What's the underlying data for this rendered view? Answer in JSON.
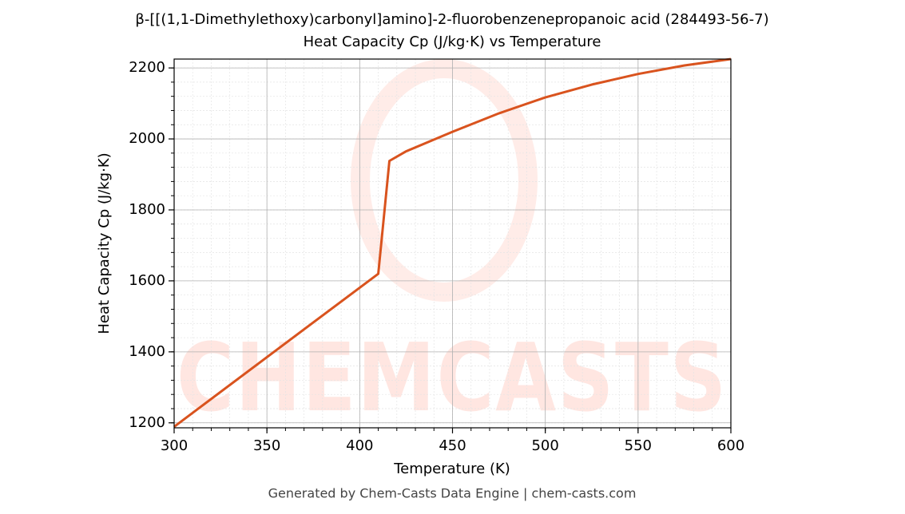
{
  "chart_data": {
    "type": "line",
    "title": "β-[[(1,1-Dimethylethoxy)carbonyl]amino]-2-fluorobenzenepropanoic acid (284493-56-7)",
    "subtitle": "Heat Capacity Cp (J/kg·K) vs Temperature",
    "x_label": "Temperature (K)",
    "y_label": "Heat Capacity Cp (J/kg·K)",
    "footer": "Generated by Chem-Casts Data Engine | chem-casts.com",
    "watermark": "CHEMCASTS",
    "x": [
      300,
      410,
      416,
      425,
      450,
      475,
      500,
      525,
      550,
      575,
      600
    ],
    "series": [
      {
        "name": "Cp",
        "color": "#d9531e",
        "values": [
          1189,
          1620,
          1938,
          1965,
          2020,
          2072,
          2117,
          2153,
          2183,
          2207,
          2225
        ]
      }
    ],
    "xlim": [
      300,
      600
    ],
    "xticks": [
      300,
      350,
      400,
      450,
      500,
      550,
      600
    ],
    "ylim": [
      1186,
      2225
    ],
    "yticks": [
      1200,
      1400,
      1600,
      1800,
      2000,
      2200
    ],
    "grid": true,
    "minor_grid": true
  }
}
